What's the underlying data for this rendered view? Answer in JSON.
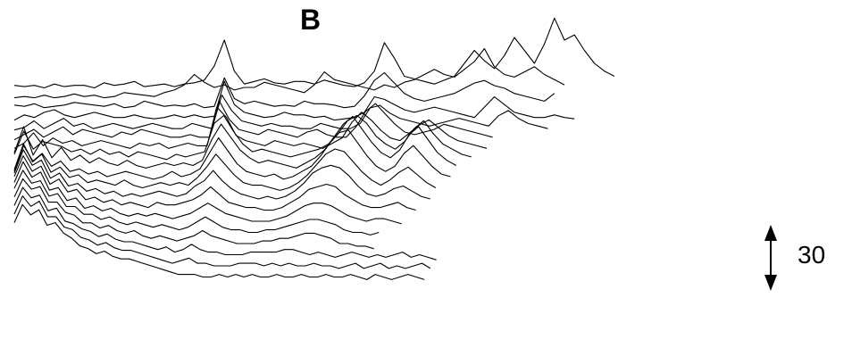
{
  "panel_label": "B",
  "chart_data": {
    "type": "line",
    "title": "",
    "xlabel": "",
    "ylabel": "",
    "grid": false,
    "legend": "none",
    "line_color": "#000000",
    "scale_bar": {
      "value": 30,
      "label": "30"
    },
    "series": [
      {
        "values": [
          3,
          2,
          3,
          1,
          4,
          2,
          3,
          3,
          1,
          5,
          3,
          4,
          6,
          2,
          3,
          4,
          2,
          4,
          5,
          7,
          18,
          38,
          14,
          4,
          6,
          8,
          5,
          4,
          6,
          6,
          4,
          7,
          5,
          3,
          2,
          5,
          14,
          36,
          24,
          10,
          8,
          6,
          4,
          7,
          10,
          20,
          30,
          22,
          16,
          26,
          40,
          30,
          20,
          35,
          55,
          38,
          42,
          30,
          20,
          14,
          10
        ]
      },
      {
        "values": [
          2,
          3,
          2,
          4,
          2,
          3,
          5,
          3,
          4,
          2,
          3,
          6,
          5,
          4,
          3,
          6,
          8,
          12,
          20,
          14,
          10,
          12,
          8,
          10,
          10,
          14,
          12,
          10,
          8,
          6,
          12,
          22,
          16,
          14,
          12,
          10,
          8,
          12,
          10,
          14,
          16,
          20,
          24,
          20,
          18,
          24,
          30,
          40,
          26,
          20,
          18,
          22,
          26,
          20,
          16,
          12
        ]
      },
      {
        "values": [
          5,
          4,
          6,
          3,
          4,
          5,
          7,
          6,
          5,
          4,
          6,
          3,
          4,
          8,
          6,
          4,
          5,
          4,
          6,
          3,
          4,
          26,
          10,
          6,
          8,
          6,
          4,
          5,
          4,
          8,
          6,
          6,
          5,
          3,
          4,
          12,
          24,
          30,
          22,
          14,
          10,
          8,
          10,
          12,
          14,
          18,
          22,
          24,
          20,
          18,
          14,
          12,
          10,
          8,
          14
        ]
      },
      {
        "values": [
          2,
          6,
          4,
          8,
          10,
          6,
          4,
          6,
          8,
          6,
          4,
          4,
          6,
          4,
          3,
          4,
          6,
          4,
          6,
          4,
          5,
          32,
          14,
          8,
          6,
          4,
          5,
          8,
          6,
          6,
          4,
          5,
          2,
          3,
          4,
          8,
          20,
          18,
          14,
          10,
          8,
          10,
          12,
          10,
          8,
          6,
          4,
          12,
          20,
          14,
          8,
          6,
          4,
          4,
          6,
          4,
          3
        ]
      },
      {
        "values": [
          3,
          5,
          10,
          4,
          8,
          12,
          6,
          8,
          4,
          6,
          8,
          6,
          4,
          6,
          8,
          6,
          4,
          4,
          8,
          6,
          4,
          30,
          18,
          10,
          8,
          6,
          8,
          6,
          6,
          4,
          4,
          8,
          6,
          4,
          4,
          8,
          20,
          22,
          16,
          12,
          10,
          8,
          6,
          8,
          10,
          12,
          10,
          8,
          6,
          14,
          18,
          12,
          8,
          6,
          4
        ]
      },
      {
        "values": [
          4,
          8,
          12,
          6,
          10,
          14,
          8,
          12,
          10,
          8,
          6,
          10,
          8,
          12,
          10,
          8,
          6,
          6,
          8,
          6,
          6,
          34,
          20,
          12,
          10,
          8,
          12,
          10,
          8,
          6,
          10,
          12,
          8,
          6,
          6,
          14,
          26,
          32,
          24,
          16,
          10,
          8,
          10,
          12,
          16,
          14,
          12,
          10,
          8,
          6
        ]
      },
      {
        "values": [
          6,
          10,
          18,
          8,
          14,
          10,
          12,
          8,
          10,
          12,
          10,
          8,
          6,
          10,
          8,
          10,
          6,
          8,
          10,
          8,
          8,
          38,
          30,
          16,
          12,
          10,
          8,
          12,
          10,
          8,
          10,
          8,
          6,
          10,
          14,
          26,
          34,
          28,
          20,
          14,
          12,
          18,
          24,
          28,
          22,
          16,
          12,
          10,
          8,
          6
        ]
      },
      {
        "values": [
          10,
          28,
          14,
          20,
          18,
          16,
          12,
          14,
          10,
          14,
          10,
          12,
          8,
          12,
          10,
          8,
          6,
          10,
          8,
          10,
          12,
          34,
          40,
          28,
          18,
          12,
          14,
          12,
          10,
          8,
          10,
          12,
          14,
          18,
          26,
          36,
          40,
          34,
          24,
          18,
          14,
          20,
          30,
          36,
          26,
          18,
          14,
          10,
          8
        ]
      },
      {
        "values": [
          20,
          40,
          18,
          30,
          16,
          24,
          14,
          18,
          12,
          16,
          12,
          10,
          14,
          10,
          8,
          10,
          12,
          10,
          12,
          10,
          14,
          30,
          42,
          32,
          22,
          16,
          12,
          14,
          12,
          10,
          8,
          12,
          16,
          22,
          32,
          42,
          48,
          38,
          28,
          20,
          16,
          22,
          34,
          40,
          30,
          20,
          14,
          10
        ]
      },
      {
        "values": [
          14,
          34,
          22,
          28,
          18,
          22,
          14,
          16,
          12,
          14,
          10,
          12,
          14,
          12,
          10,
          8,
          10,
          14,
          10,
          12,
          16,
          28,
          40,
          30,
          20,
          14,
          12,
          10,
          12,
          8,
          10,
          14,
          18,
          26,
          36,
          44,
          46,
          36,
          26,
          18,
          14,
          18,
          28,
          34,
          26,
          18,
          12,
          10
        ]
      },
      {
        "values": [
          24,
          44,
          30,
          36,
          22,
          26,
          18,
          20,
          14,
          16,
          14,
          12,
          16,
          12,
          10,
          12,
          14,
          12,
          14,
          12,
          18,
          26,
          36,
          28,
          20,
          14,
          12,
          12,
          10,
          8,
          10,
          14,
          20,
          28,
          36,
          40,
          38,
          30,
          22,
          16,
          12,
          16,
          22,
          26,
          20,
          14,
          10
        ]
      },
      {
        "values": [
          30,
          48,
          36,
          40,
          26,
          30,
          20,
          22,
          16,
          18,
          14,
          16,
          12,
          14,
          12,
          14,
          16,
          14,
          12,
          14,
          20,
          24,
          32,
          24,
          18,
          14,
          12,
          10,
          12,
          10,
          12,
          16,
          22,
          30,
          34,
          36,
          34,
          28,
          20,
          14,
          12,
          14,
          18,
          20,
          16,
          12,
          10
        ]
      },
      {
        "values": [
          36,
          52,
          40,
          44,
          30,
          34,
          24,
          26,
          18,
          20,
          16,
          18,
          14,
          16,
          14,
          12,
          16,
          14,
          14,
          16,
          18,
          22,
          28,
          22,
          16,
          14,
          12,
          12,
          10,
          10,
          12,
          16,
          20,
          26,
          28,
          30,
          28,
          22,
          18,
          14,
          12,
          12,
          14,
          16,
          12,
          10
        ]
      },
      {
        "values": [
          40,
          56,
          44,
          48,
          34,
          36,
          26,
          28,
          20,
          22,
          18,
          20,
          16,
          14,
          16,
          14,
          16,
          14,
          12,
          14,
          16,
          20,
          24,
          20,
          16,
          14,
          12,
          10,
          10,
          10,
          12,
          14,
          18,
          22,
          24,
          24,
          22,
          18,
          14,
          12,
          10,
          12,
          12,
          10,
          8
        ]
      },
      {
        "values": [
          44,
          58,
          48,
          50,
          38,
          40,
          30,
          30,
          24,
          24,
          20,
          22,
          18,
          16,
          18,
          16,
          14,
          16,
          14,
          12,
          14,
          18,
          22,
          18,
          14,
          12,
          12,
          10,
          10,
          12,
          12,
          14,
          16,
          18,
          20,
          20,
          18,
          16,
          12,
          10,
          10,
          8,
          10
        ]
      },
      {
        "values": [
          46,
          60,
          52,
          54,
          42,
          42,
          34,
          32,
          26,
          26,
          22,
          24,
          20,
          18,
          20,
          16,
          14,
          16,
          14,
          12,
          14,
          16,
          20,
          16,
          14,
          12,
          10,
          10,
          10,
          12,
          12,
          14,
          14,
          16,
          18,
          18,
          16,
          14,
          10,
          10,
          8,
          8,
          6
        ]
      },
      {
        "values": [
          48,
          62,
          54,
          56,
          44,
          46,
          36,
          34,
          30,
          28,
          24,
          26,
          22,
          20,
          20,
          18,
          16,
          14,
          16,
          12,
          14,
          18,
          14,
          12,
          12,
          10,
          10,
          10,
          12,
          12,
          12,
          12,
          14,
          14,
          12,
          10,
          12,
          10,
          8,
          10,
          12,
          10,
          8,
          10,
          8,
          10,
          12,
          8,
          10,
          8,
          6
        ]
      },
      {
        "values": [
          50,
          64,
          56,
          60,
          48,
          48,
          40,
          38,
          32,
          30,
          26,
          28,
          24,
          22,
          22,
          20,
          18,
          16,
          14,
          12,
          14,
          16,
          12,
          12,
          10,
          10,
          10,
          12,
          12,
          12,
          10,
          12,
          10,
          12,
          10,
          10,
          12,
          10,
          10,
          8,
          10,
          12,
          8,
          10,
          12,
          8,
          10,
          8,
          10,
          12,
          8
        ]
      },
      {
        "values": [
          52,
          66,
          58,
          62,
          50,
          52,
          44,
          40,
          34,
          32,
          28,
          30,
          26,
          24,
          24,
          22,
          20,
          18,
          16,
          14,
          12,
          12,
          12,
          10,
          10,
          12,
          10,
          12,
          10,
          12,
          10,
          10,
          12,
          10,
          10,
          12,
          10,
          10,
          12,
          10,
          10,
          12,
          10,
          8,
          12,
          10,
          8,
          10,
          12,
          10,
          8
        ]
      }
    ]
  }
}
